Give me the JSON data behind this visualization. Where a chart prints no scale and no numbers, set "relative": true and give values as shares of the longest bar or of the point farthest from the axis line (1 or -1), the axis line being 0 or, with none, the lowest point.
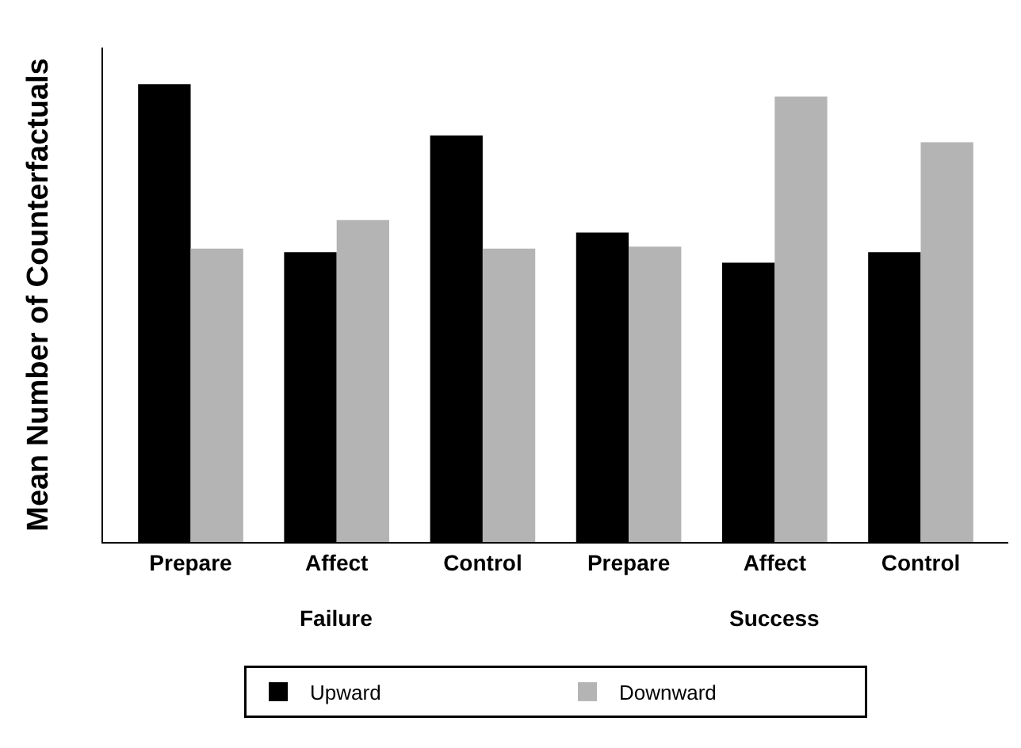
{
  "chart_data": {
    "type": "bar",
    "relative": true,
    "ylabel": "Mean Number of Counterfactuals",
    "categories": [
      "Prepare",
      "Affect",
      "Control",
      "Prepare",
      "Affect",
      "Control"
    ],
    "series": [
      {
        "name": "Upward",
        "color": "#000000",
        "values": [
          1,
          0.633,
          0.888,
          0.676,
          0.61,
          0.633
        ]
      },
      {
        "name": "Downward",
        "color": "#b4b4b4",
        "values": [
          0.641,
          0.703,
          0.641,
          0.645,
          0.973,
          0.873
        ]
      }
    ],
    "annotations": [
      "Failure",
      "Success"
    ],
    "legend": "bottom",
    "grid": false
  }
}
